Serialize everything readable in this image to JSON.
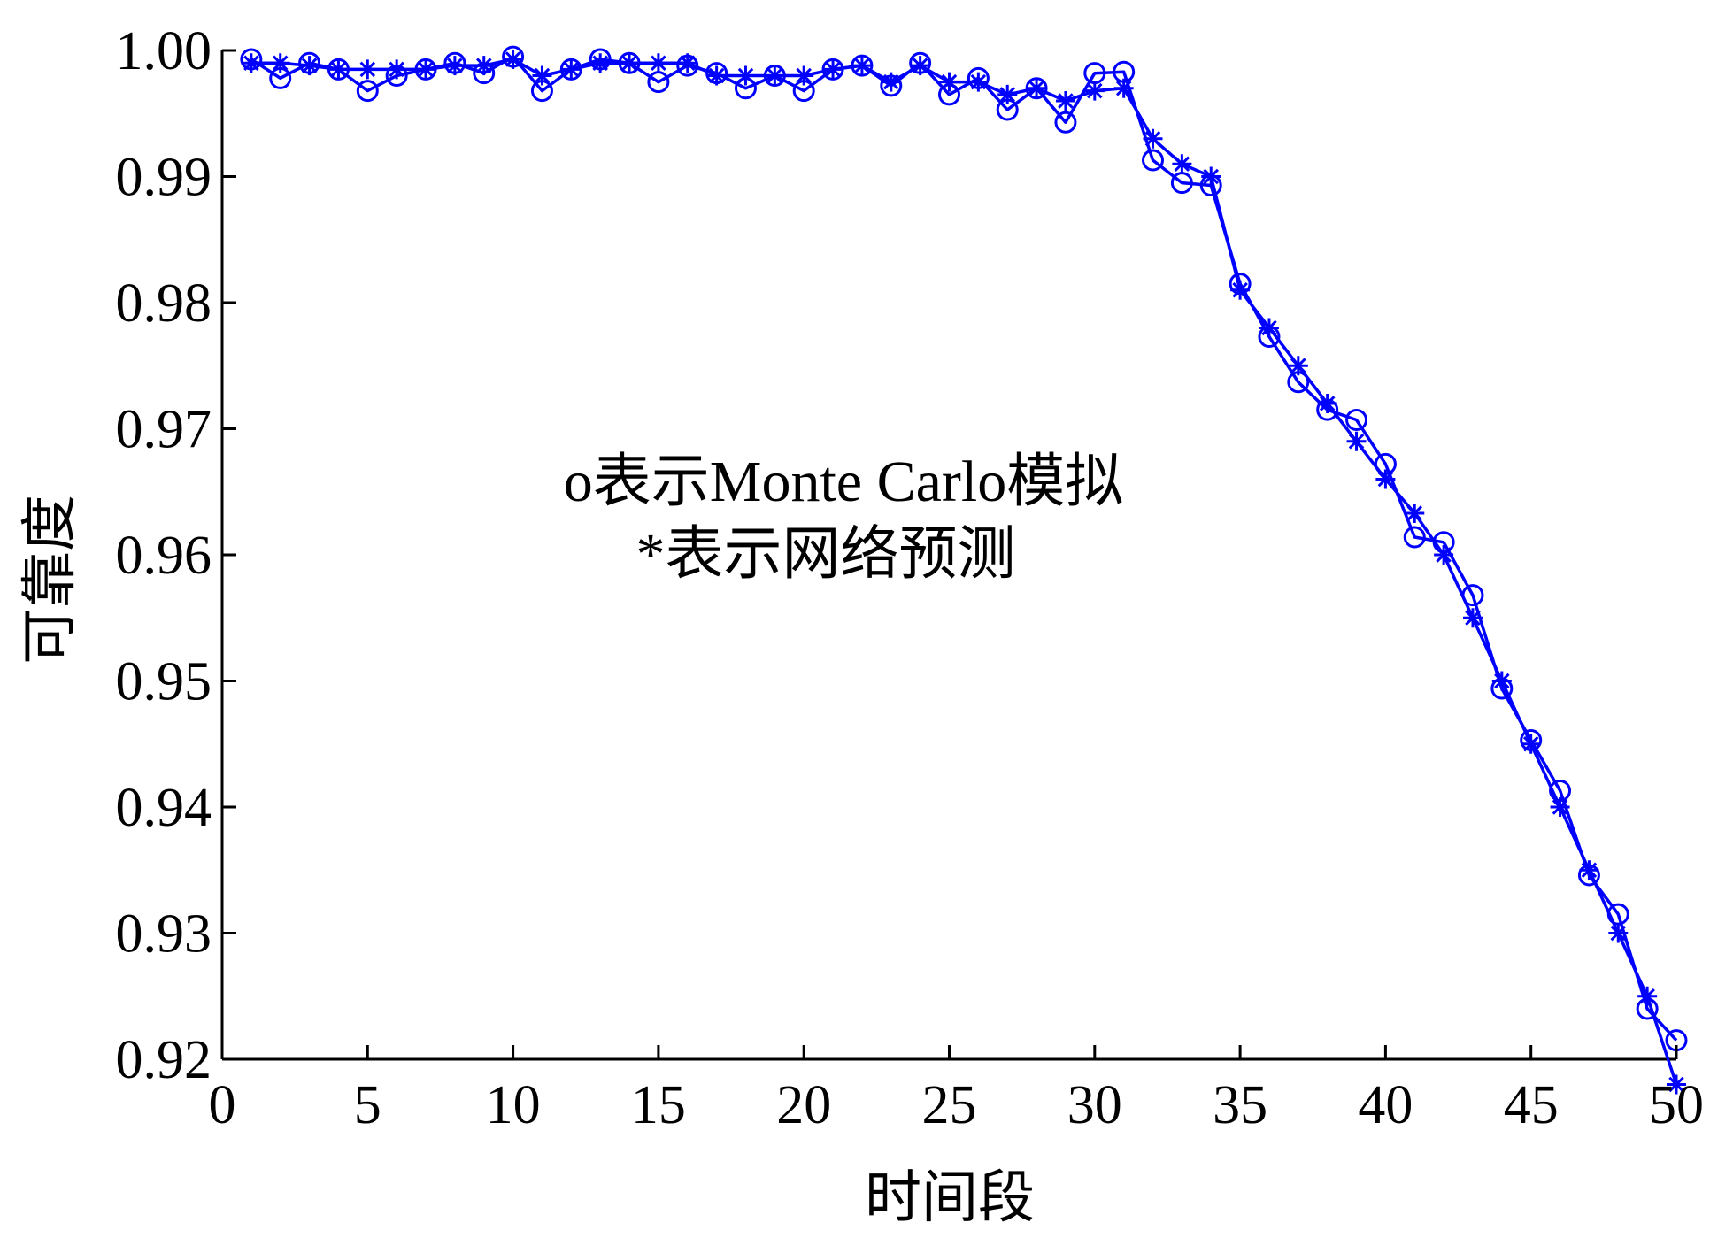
{
  "chart_data": {
    "type": "line",
    "title": "",
    "xlabel": "时间段",
    "ylabel": "可靠度",
    "xlim": [
      0,
      50
    ],
    "ylim": [
      0.92,
      1.0
    ],
    "xticks": [
      0,
      5,
      10,
      15,
      20,
      25,
      30,
      35,
      40,
      45,
      50
    ],
    "yticks": [
      0.92,
      0.93,
      0.94,
      0.95,
      0.96,
      0.97,
      0.98,
      0.99,
      1.0
    ],
    "xtick_labels": [
      "0",
      "5",
      "10",
      "15",
      "20",
      "25",
      "30",
      "35",
      "40",
      "45",
      "50"
    ],
    "ytick_labels": [
      "0.92",
      "0.93",
      "0.94",
      "0.95",
      "0.96",
      "0.97",
      "0.98",
      "0.99",
      "1.00"
    ],
    "grid": false,
    "annotations": [
      "o表示Monte Carlo模拟",
      "*表示网络预测"
    ],
    "x": [
      1,
      2,
      3,
      4,
      5,
      6,
      7,
      8,
      9,
      10,
      11,
      12,
      13,
      14,
      15,
      16,
      17,
      18,
      19,
      20,
      21,
      22,
      23,
      24,
      25,
      26,
      27,
      28,
      29,
      30,
      31,
      32,
      33,
      34,
      35,
      36,
      37,
      38,
      39,
      40,
      41,
      42,
      43,
      44,
      45,
      46,
      47,
      48,
      49,
      50
    ],
    "series": [
      {
        "marker": "o",
        "color": "#0000ff",
        "values": [
          0.9993,
          0.9978,
          0.999,
          0.9985,
          0.9968,
          0.998,
          0.9985,
          0.999,
          0.9982,
          0.9995,
          0.9968,
          0.9985,
          0.9993,
          0.999,
          0.9975,
          0.9988,
          0.9982,
          0.997,
          0.998,
          0.9968,
          0.9985,
          0.9988,
          0.9972,
          0.999,
          0.9965,
          0.9978,
          0.9953,
          0.997,
          0.9943,
          0.9982,
          0.9983,
          0.9913,
          0.9895,
          0.9893,
          0.9815,
          0.9773,
          0.9737,
          0.9715,
          0.9707,
          0.9672,
          0.9614,
          0.961,
          0.9568,
          0.9494,
          0.9453,
          0.9413,
          0.9346,
          0.9315,
          0.924,
          0.9215
        ]
      },
      {
        "marker": "*",
        "color": "#0000ff",
        "values": [
          0.999,
          0.999,
          0.9988,
          0.9985,
          0.9985,
          0.9985,
          0.9985,
          0.9988,
          0.9988,
          0.9993,
          0.998,
          0.9985,
          0.999,
          0.999,
          0.999,
          0.999,
          0.998,
          0.998,
          0.998,
          0.998,
          0.9985,
          0.9988,
          0.9975,
          0.9988,
          0.9975,
          0.9975,
          0.9965,
          0.997,
          0.996,
          0.9968,
          0.997,
          0.993,
          0.991,
          0.99,
          0.981,
          0.978,
          0.975,
          0.972,
          0.969,
          0.966,
          0.9633,
          0.96,
          0.955,
          0.95,
          0.945,
          0.94,
          0.935,
          0.93,
          0.925,
          0.918
        ]
      }
    ]
  }
}
